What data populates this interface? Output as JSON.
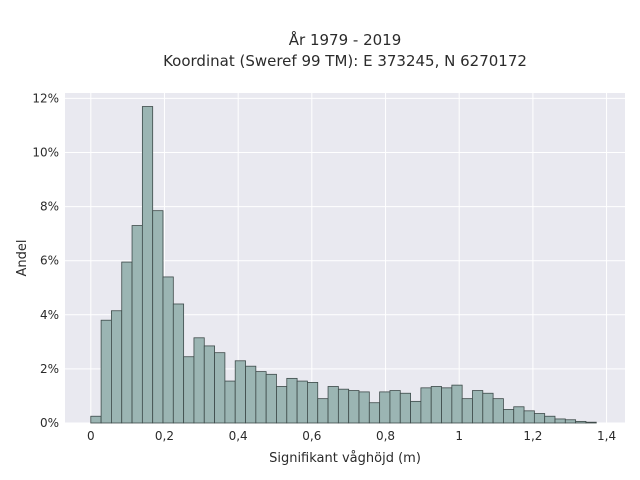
{
  "chart_data": {
    "type": "bar",
    "title_line1": "År 1979 - 2019",
    "title_line2": "Koordinat (Sweref 99 TM): E 373245, N 6270172",
    "xlabel": "Signifikant våghöjd (m)",
    "ylabel": "Andel",
    "x_ticks": [
      "0",
      "0,2",
      "0,4",
      "0,6",
      "0,8",
      "1",
      "1,2",
      "1,4"
    ],
    "y_ticks": [
      "0%",
      "2%",
      "4%",
      "6%",
      "8%",
      "10%",
      "12%"
    ],
    "xlim": [
      -0.07,
      1.45
    ],
    "ylim": [
      0,
      12.2
    ],
    "bin_start": 0.0,
    "bin_width": 0.028,
    "values": [
      0.25,
      3.8,
      4.15,
      5.95,
      7.3,
      11.7,
      7.85,
      5.4,
      4.4,
      2.45,
      3.15,
      2.85,
      2.6,
      1.55,
      2.3,
      2.1,
      1.9,
      1.8,
      1.35,
      1.65,
      1.55,
      1.5,
      0.9,
      1.35,
      1.25,
      1.2,
      1.15,
      0.75,
      1.15,
      1.2,
      1.1,
      0.8,
      1.3,
      1.35,
      1.3,
      1.4,
      0.9,
      1.2,
      1.1,
      0.9,
      0.5,
      0.6,
      0.45,
      0.35,
      0.25,
      0.15,
      0.12,
      0.06,
      0.03
    ],
    "bar_color": "#9bb5b3",
    "bar_edge": "#3d4a49",
    "plot_bg": "#e9e9f0",
    "grid": true,
    "grid_color": "#ffffff"
  }
}
